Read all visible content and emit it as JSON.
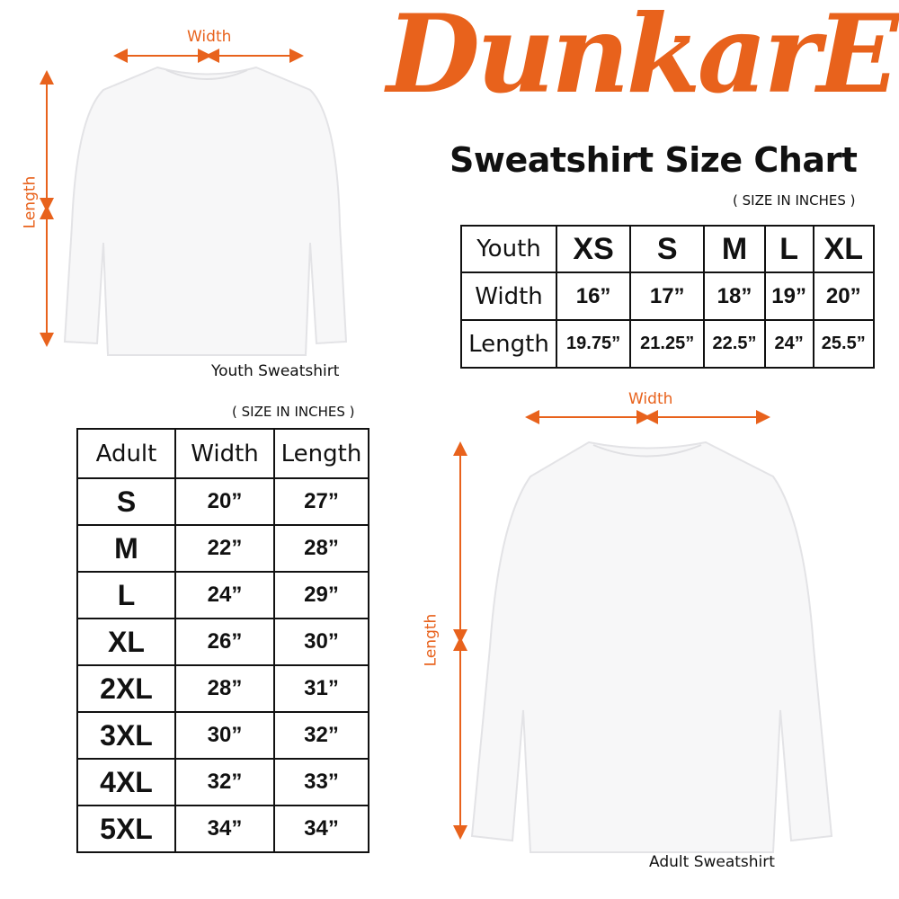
{
  "brand": {
    "logo_text": "DunkarE",
    "color": "#e8621c"
  },
  "title": "Sweatshirt Size Chart",
  "youth": {
    "width_label": "Width",
    "length_label": "Length",
    "caption": "Youth Sweatshirt",
    "units_note": "( SIZE IN INCHES )",
    "headers": [
      "Youth",
      "XS",
      "S",
      "M",
      "L",
      "XL"
    ],
    "rows": [
      {
        "label": "Width",
        "values": [
          "16”",
          "17”",
          "18”",
          "19”",
          "20”"
        ]
      },
      {
        "label": "Length",
        "values": [
          "19.75”",
          "21.25”",
          "22.5”",
          "24”",
          "25.5”"
        ]
      }
    ]
  },
  "adult": {
    "width_label": "Width",
    "length_label": "Length",
    "caption": "Adult Sweatshirt",
    "units_note": "( SIZE IN INCHES )",
    "headers": [
      "Adult",
      "Width",
      "Length"
    ],
    "rows": [
      [
        "S",
        "20”",
        "27”"
      ],
      [
        "M",
        "22”",
        "28”"
      ],
      [
        "L",
        "24”",
        "29”"
      ],
      [
        "XL",
        "26”",
        "30”"
      ],
      [
        "2XL",
        "28”",
        "31”"
      ],
      [
        "3XL",
        "30”",
        "32”"
      ],
      [
        "4XL",
        "32”",
        "33”"
      ],
      [
        "5XL",
        "34”",
        "34”"
      ]
    ]
  }
}
